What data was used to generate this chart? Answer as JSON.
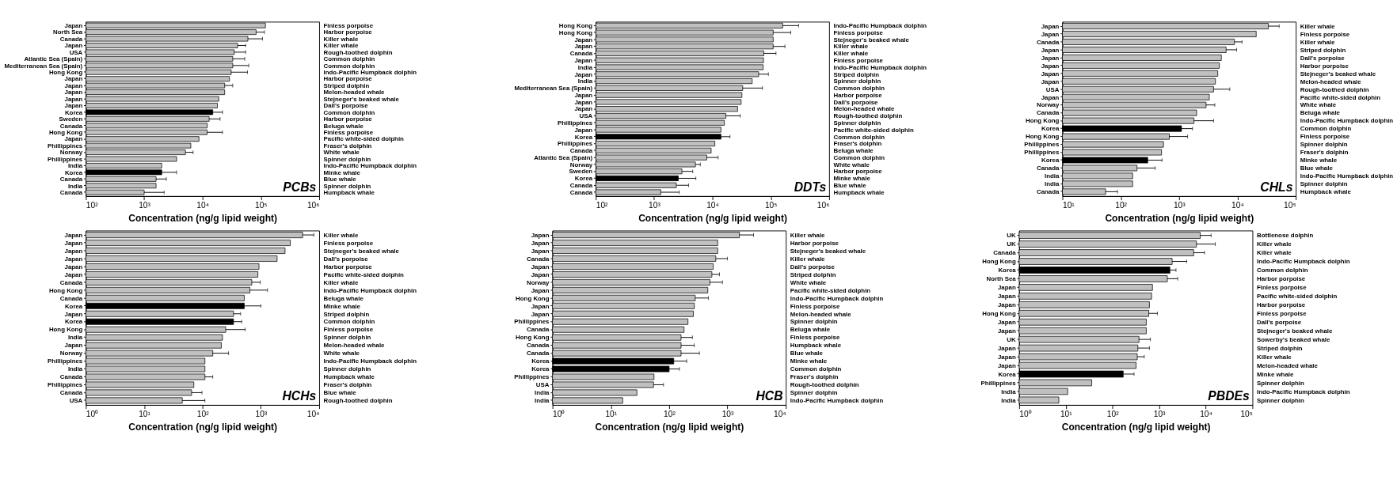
{
  "chart_data": [
    {
      "type": "bar",
      "orientation": "horizontal",
      "title": "PCBs",
      "xlabel": "Concentration (ng/g lipid weight)",
      "log": "x",
      "grid": false,
      "categories": [
        "Japan",
        "North Sea",
        "Canada",
        "Japan",
        "USA",
        "Atlantic Sea (Spain)",
        "Mediterranean Sea (Spain)",
        "Hong Kong",
        "Japan",
        "Japan",
        "Japan",
        "Japan",
        "Japan",
        "Korea",
        "Sweden",
        "Canada",
        "Hong Kong",
        "Japan",
        "Phillippines",
        "Norway",
        "Phillippines",
        "India",
        "Korea",
        "Canada",
        "India",
        "Canada"
      ],
      "y2_categories": [
        "Finless porpoise",
        "Harbor porpoise",
        "Killer whale",
        "Killer whale",
        "Rough-toothed dolphin",
        "Common dolphin",
        "Common dolphin",
        "Indo-Pacific Humpback dolphin",
        "Harbor porpoise",
        "Striped dolphin",
        "Melon-headed whale",
        "Stejneger's beaked whale",
        "Dall's porpoise",
        "Common dolphin",
        "Harbor porpoise",
        "Beluga whale",
        "Finless porpoise",
        "Pacific white-sided dolphin",
        "Fraser's dolphin",
        "White whale",
        "Spinner dolphin",
        "Indo-Pacific Humpback dolphin",
        "Minke whale",
        "Blue whale",
        "Spinner dolphin",
        "Humpback whale"
      ],
      "values": [
        120000,
        83000,
        60000,
        40000,
        35000,
        33000,
        33000,
        31000,
        29000,
        24000,
        24000,
        19000,
        18000,
        15000,
        13000,
        12000,
        12000,
        8700,
        6300,
        5100,
        3600,
        2000,
        2000,
        1600,
        1600,
        1000
      ],
      "errors": [
        null,
        [
          83000,
          115000
        ],
        [
          60000,
          107000
        ],
        [
          40000,
          55000
        ],
        [
          35000,
          55000
        ],
        [
          33000,
          53000
        ],
        [
          33000,
          62000
        ],
        [
          31000,
          59000
        ],
        null,
        [
          24000,
          33000
        ],
        null,
        null,
        null,
        [
          15000,
          22000
        ],
        [
          13000,
          20000
        ],
        null,
        [
          12000,
          22000
        ],
        null,
        null,
        [
          5100,
          6900
        ],
        null,
        null,
        [
          2000,
          3600
        ],
        [
          1600,
          2400
        ],
        null,
        [
          1000,
          2200
        ]
      ],
      "colors": [
        "#c0c0c0",
        "#c0c0c0",
        "#c0c0c0",
        "#c0c0c0",
        "#c0c0c0",
        "#c0c0c0",
        "#c0c0c0",
        "#c0c0c0",
        "#c0c0c0",
        "#c0c0c0",
        "#c0c0c0",
        "#c0c0c0",
        "#c0c0c0",
        "#000000",
        "#c0c0c0",
        "#c0c0c0",
        "#c0c0c0",
        "#c0c0c0",
        "#c0c0c0",
        "#c0c0c0",
        "#c0c0c0",
        "#c0c0c0",
        "#000000",
        "#c0c0c0",
        "#c0c0c0",
        "#c0c0c0"
      ],
      "xlim": [
        100,
        1000000
      ],
      "xticks": [
        {
          "value": 100,
          "label": "10²"
        },
        {
          "value": 1000,
          "label": "10³"
        },
        {
          "value": 10000,
          "label": "10⁴"
        },
        {
          "value": 100000,
          "label": "10⁵"
        },
        {
          "value": 1000000,
          "label": "10⁶"
        }
      ]
    },
    {
      "type": "bar",
      "orientation": "horizontal",
      "title": "DDTs",
      "xlabel": "Concentration (ng/g lipid weight)",
      "log": "x",
      "grid": false,
      "categories": [
        "Hong Kong",
        "Hong Kong",
        "Japan",
        "Japan",
        "Canada",
        "Japan",
        "India",
        "Japan",
        "India",
        "Mediterranean Sea (Spain)",
        "Japan",
        "Japan",
        "Japan",
        "USA",
        "Phillippines",
        "Japan",
        "Korea",
        "Phillippines",
        "Canada",
        "Atlantic Sea (Spain)",
        "Norway",
        "Sweden",
        "Korea",
        "Canada",
        "Canada"
      ],
      "y2_categories": [
        "Indo-Pacific Humpback dolphin",
        "Finless porpoise",
        "Stejneger's beaked whale",
        "Killer whale",
        "Killer whale",
        "Finless porpoise",
        "Indo-Pacific Humpback dolphin",
        "Striped dolphin",
        "Spinner dolphin",
        "Common dolphin",
        "Harbor porpoise",
        "Dall's porpoise",
        "Melon-headed whale",
        "Rough-toothed dolphin",
        "Spinner dolphin",
        "Pacific white-sided dolphin",
        "Common dolphin",
        "Fraser's dolphin",
        "Beluga whale",
        "Common dolphin",
        "White whale",
        "Harbor porpoise",
        "Minke whale",
        "Blue whale",
        "Humpback whale"
      ],
      "values": [
        160000,
        110000,
        110000,
        110000,
        76000,
        75000,
        74000,
        62000,
        48000,
        33000,
        32000,
        31000,
        27000,
        17000,
        16000,
        14000,
        14000,
        11000,
        9500,
        8000,
        5100,
        3000,
        2600,
        2400,
        1300
      ],
      "errors": [
        [
          160000,
          300000
        ],
        [
          110000,
          220000
        ],
        null,
        [
          110000,
          175000
        ],
        [
          76000,
          123000
        ],
        null,
        null,
        [
          62000,
          91000
        ],
        null,
        [
          33000,
          72000
        ],
        null,
        null,
        null,
        [
          17000,
          30000
        ],
        null,
        null,
        [
          14000,
          20000
        ],
        null,
        null,
        [
          8000,
          12500
        ],
        [
          5100,
          6200
        ],
        [
          3000,
          4600
        ],
        [
          2600,
          5200
        ],
        [
          2400,
          3900
        ],
        [
          1300,
          2700
        ]
      ],
      "colors": [
        "#c0c0c0",
        "#c0c0c0",
        "#c0c0c0",
        "#c0c0c0",
        "#c0c0c0",
        "#c0c0c0",
        "#c0c0c0",
        "#c0c0c0",
        "#c0c0c0",
        "#c0c0c0",
        "#c0c0c0",
        "#c0c0c0",
        "#c0c0c0",
        "#c0c0c0",
        "#c0c0c0",
        "#c0c0c0",
        "#000000",
        "#c0c0c0",
        "#c0c0c0",
        "#c0c0c0",
        "#c0c0c0",
        "#c0c0c0",
        "#000000",
        "#c0c0c0",
        "#c0c0c0"
      ],
      "xlim": [
        100,
        1000000
      ],
      "xticks": [
        {
          "value": 100,
          "label": "10²"
        },
        {
          "value": 1000,
          "label": "10³"
        },
        {
          "value": 10000,
          "label": "10⁴"
        },
        {
          "value": 100000,
          "label": "10⁵"
        },
        {
          "value": 1000000,
          "label": "10⁶"
        }
      ]
    },
    {
      "type": "bar",
      "orientation": "horizontal",
      "title": "CHLs",
      "xlabel": "Concentration (ng/g lipid weight)",
      "log": "x",
      "grid": false,
      "categories": [
        "Japan",
        "Japan",
        "Canada",
        "Japan",
        "Japan",
        "Japan",
        "Japan",
        "Japan",
        "USA",
        "Japan",
        "Norway",
        "Canada",
        "Hong Kong",
        "Korea",
        "Hong Kong",
        "Phillippines",
        "Phillippines",
        "Korea",
        "Canada",
        "India",
        "India",
        "Canada"
      ],
      "y2_categories": [
        "Killer whale",
        "Finless porpoise",
        "Killer whale",
        "Striped dolphin",
        "Dall's porpoise",
        "Harbor porpoise",
        "Stejneger's beaked whale",
        "Melon-headed whale",
        "Rough-toothed dolphin",
        "Pacific white-sided dolphin",
        "White whale",
        "Beluga whale",
        "Indo-Pacific Humpback dolphin",
        "Common dolphin",
        "Finless porpoise",
        "Spinner dolphin",
        "Fraser's dolphin",
        "Minke whale",
        "Blue whale",
        "Indo-Pacific Humpback dolphin",
        "Spinner dolphin",
        "Humpback whale"
      ],
      "values": [
        34000,
        21000,
        8900,
        6400,
        5300,
        4900,
        4600,
        4200,
        3900,
        3300,
        2900,
        2000,
        1800,
        1100,
        680,
        540,
        500,
        290,
        190,
        160,
        160,
        55
      ],
      "errors": [
        [
          34000,
          52000
        ],
        null,
        [
          8900,
          12000
        ],
        [
          6400,
          9700
        ],
        null,
        null,
        null,
        null,
        [
          3900,
          7400
        ],
        null,
        [
          2900,
          4100
        ],
        null,
        [
          1800,
          3900
        ],
        [
          1100,
          1700
        ],
        [
          680,
          1400
        ],
        null,
        null,
        [
          290,
          510
        ],
        [
          190,
          390
        ],
        null,
        null,
        [
          55,
          88
        ]
      ],
      "colors": [
        "#c0c0c0",
        "#c0c0c0",
        "#c0c0c0",
        "#c0c0c0",
        "#c0c0c0",
        "#c0c0c0",
        "#c0c0c0",
        "#c0c0c0",
        "#c0c0c0",
        "#c0c0c0",
        "#c0c0c0",
        "#c0c0c0",
        "#c0c0c0",
        "#000000",
        "#c0c0c0",
        "#c0c0c0",
        "#c0c0c0",
        "#000000",
        "#c0c0c0",
        "#c0c0c0",
        "#c0c0c0",
        "#c0c0c0"
      ],
      "xlim": [
        10,
        100000
      ],
      "xticks": [
        {
          "value": 10,
          "label": "10¹"
        },
        {
          "value": 100,
          "label": "10²"
        },
        {
          "value": 1000,
          "label": "10³"
        },
        {
          "value": 10000,
          "label": "10⁴"
        },
        {
          "value": 100000,
          "label": "10⁵"
        }
      ]
    },
    {
      "type": "bar",
      "orientation": "horizontal",
      "title": "HCHs",
      "xlabel": "Concentration (ng/g lipid weight)",
      "log": "x",
      "grid": false,
      "categories": [
        "Japan",
        "Japan",
        "Japan",
        "Japan",
        "Japan",
        "Japan",
        "Canada",
        "Hong Kong",
        "Canada",
        "Korea",
        "Japan",
        "Korea",
        "Hong Kong",
        "India",
        "Japan",
        "Norway",
        "Phillippines",
        "India",
        "Canada",
        "Phillippines",
        "Canada",
        "USA"
      ],
      "y2_categories": [
        "Killer whale",
        "Finless porpoise",
        "Stejneger's beaked whale",
        "Dall's porpoise",
        "Harbor porpoise",
        "Pacific white-sided dolphin",
        "Killer whale",
        "Indo-Pacific Humpback dolphin",
        "Beluga whale",
        "Minke whale",
        "Striped dolphin",
        "Common dolphin",
        "Finless porpoise",
        "Spinner dolphin",
        "Melon-headed whale",
        "White whale",
        "Indo-Pacific Humpback dolphin",
        "Spinner dolphin",
        "Humpback whale",
        "Fraser's dolphin",
        "Blue whale",
        "Rough-toothed dolphin"
      ],
      "values": [
        5200,
        3200,
        2600,
        1900,
        930,
        890,
        700,
        650,
        520,
        520,
        340,
        340,
        250,
        220,
        210,
        150,
        110,
        110,
        110,
        71,
        65,
        45
      ],
      "errors": [
        [
          5200,
          8100
        ],
        null,
        null,
        null,
        null,
        null,
        [
          700,
          980
        ],
        [
          650,
          1300
        ],
        null,
        [
          520,
          1000
        ],
        [
          340,
          450
        ],
        [
          340,
          470
        ],
        [
          250,
          540
        ],
        null,
        null,
        [
          150,
          280
        ],
        null,
        null,
        [
          110,
          150
        ],
        null,
        [
          65,
          98
        ],
        [
          45,
          110
        ]
      ],
      "colors": [
        "#c0c0c0",
        "#c0c0c0",
        "#c0c0c0",
        "#c0c0c0",
        "#c0c0c0",
        "#c0c0c0",
        "#c0c0c0",
        "#c0c0c0",
        "#c0c0c0",
        "#000000",
        "#c0c0c0",
        "#000000",
        "#c0c0c0",
        "#c0c0c0",
        "#c0c0c0",
        "#c0c0c0",
        "#c0c0c0",
        "#c0c0c0",
        "#c0c0c0",
        "#c0c0c0",
        "#c0c0c0",
        "#c0c0c0"
      ],
      "xlim": [
        1,
        10000
      ],
      "xticks": [
        {
          "value": 1,
          "label": "10⁰"
        },
        {
          "value": 10,
          "label": "10¹"
        },
        {
          "value": 100,
          "label": "10²"
        },
        {
          "value": 1000,
          "label": "10³"
        },
        {
          "value": 10000,
          "label": "10⁴"
        }
      ]
    },
    {
      "type": "bar",
      "orientation": "horizontal",
      "title": "HCB",
      "xlabel": "Concentration (ng/g lipid weight)",
      "log": "x",
      "grid": false,
      "categories": [
        "Japan",
        "Japan",
        "Japan",
        "Canada",
        "Japan",
        "Japan",
        "Norway",
        "Japan",
        "Hong Kong",
        "Japan",
        "Japan",
        "Phillippines",
        "Canada",
        "Hong Kong",
        "Canada",
        "Canada",
        "Korea",
        "Korea",
        "Phillippines",
        "USA",
        "India",
        "India"
      ],
      "y2_categories": [
        "Killer whale",
        "Harbor porpoise",
        "Stejneger's beaked whale",
        "Killer whale",
        "Dall's porpoise",
        "Striped dolphin",
        "White whale",
        "Pacific white-sided dolphin",
        "Indo-Pacific Humpback dolphin",
        "Finless porpoise",
        "Melon-headed whale",
        "Spinner dolphin",
        "Beluga whale",
        "Finless porpoise",
        "Humpback whale",
        "Blue whale",
        "Minke whale",
        "Common dolphin",
        "Fraser's dolphin",
        "Rough-toothed dolphin",
        "Spinner dolphin",
        "Indo-Pacific Humpback dolphin"
      ],
      "values": [
        1600,
        680,
        680,
        630,
        570,
        540,
        500,
        460,
        280,
        270,
        260,
        210,
        180,
        160,
        160,
        160,
        120,
        100,
        55,
        54,
        28,
        16
      ],
      "errors": [
        [
          1600,
          2800
        ],
        null,
        null,
        [
          630,
          1000
        ],
        null,
        [
          540,
          730
        ],
        [
          500,
          820
        ],
        null,
        [
          280,
          470
        ],
        null,
        null,
        null,
        null,
        [
          160,
          250
        ],
        [
          160,
          270
        ],
        [
          160,
          330
        ],
        [
          120,
          200
        ],
        [
          100,
          150
        ],
        null,
        [
          54,
          80
        ],
        null,
        null
      ],
      "colors": [
        "#c0c0c0",
        "#c0c0c0",
        "#c0c0c0",
        "#c0c0c0",
        "#c0c0c0",
        "#c0c0c0",
        "#c0c0c0",
        "#c0c0c0",
        "#c0c0c0",
        "#c0c0c0",
        "#c0c0c0",
        "#c0c0c0",
        "#c0c0c0",
        "#c0c0c0",
        "#c0c0c0",
        "#c0c0c0",
        "#000000",
        "#000000",
        "#c0c0c0",
        "#c0c0c0",
        "#c0c0c0",
        "#c0c0c0"
      ],
      "xlim": [
        1,
        10000
      ],
      "xticks": [
        {
          "value": 1,
          "label": "10⁰"
        },
        {
          "value": 10,
          "label": "10¹"
        },
        {
          "value": 100,
          "label": "10²"
        },
        {
          "value": 1000,
          "label": "10³"
        },
        {
          "value": 10000,
          "label": "10⁴"
        }
      ]
    },
    {
      "type": "bar",
      "orientation": "horizontal",
      "title": "PBDEs",
      "xlabel": "Concentration (ng/g lipid weight)",
      "log": "x",
      "grid": false,
      "categories": [
        "UK",
        "UK",
        "Canada",
        "Hong Kong",
        "Korea",
        "North Sea",
        "Japan",
        "Japan",
        "Japan",
        "Hong Kong",
        "Japan",
        "Japan",
        "UK",
        "Japan",
        "Japan",
        "Japan",
        "Korea",
        "Phillippines",
        "India",
        "India"
      ],
      "y2_categories": [
        "Bottlenose dolphin",
        "Killer whale",
        "Killer whale",
        "Indo-Pacific Humpback dolphin",
        "Common dolphin",
        "Harbor porpoise",
        "Finless porpoise",
        "Pacific white-sided dolphin",
        "Harbor porpoise",
        "Finless porpoise",
        "Dall's porpoise",
        "Stejneger's beaked whale",
        "Sowerby's beaked whale",
        "Striped dolphin",
        "Killer whale",
        "Melon-headed whale",
        "Minke whale",
        "Spinner dolphin",
        "Indo-Pacific Humpback dolphin",
        "Spinner dolphin"
      ],
      "values": [
        7600,
        6300,
        5500,
        1900,
        1700,
        1500,
        720,
        690,
        620,
        600,
        530,
        530,
        370,
        350,
        340,
        320,
        170,
        36,
        11,
        7.1
      ],
      "errors": [
        [
          7600,
          13000
        ],
        [
          6300,
          16000
        ],
        [
          5500,
          9400
        ],
        [
          1900,
          3900
        ],
        [
          1700,
          2300
        ],
        [
          1500,
          2500
        ],
        null,
        null,
        null,
        [
          600,
          920
        ],
        null,
        null,
        [
          370,
          650
        ],
        [
          350,
          620
        ],
        [
          340,
          480
        ],
        null,
        [
          170,
          290
        ],
        null,
        null,
        null
      ],
      "colors": [
        "#c0c0c0",
        "#c0c0c0",
        "#c0c0c0",
        "#c0c0c0",
        "#000000",
        "#c0c0c0",
        "#c0c0c0",
        "#c0c0c0",
        "#c0c0c0",
        "#c0c0c0",
        "#c0c0c0",
        "#c0c0c0",
        "#c0c0c0",
        "#c0c0c0",
        "#c0c0c0",
        "#c0c0c0",
        "#000000",
        "#c0c0c0",
        "#c0c0c0",
        "#c0c0c0"
      ],
      "xlim": [
        1,
        100000
      ],
      "xticks": [
        {
          "value": 1,
          "label": "10⁰"
        },
        {
          "value": 10,
          "label": "10¹"
        },
        {
          "value": 100,
          "label": "10²"
        },
        {
          "value": 1000,
          "label": "10³"
        },
        {
          "value": 10000,
          "label": "10⁴"
        },
        {
          "value": 100000,
          "label": "10⁵"
        }
      ]
    }
  ]
}
